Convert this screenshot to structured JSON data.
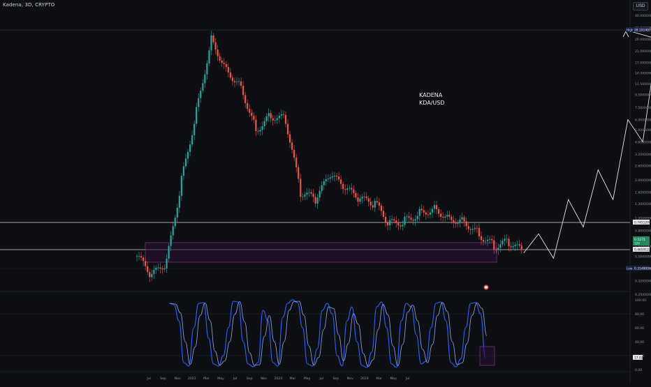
{
  "header": {
    "symbol_title": "Kadena, 3D, CRYPTO",
    "currency": "USD"
  },
  "annotation": {
    "line1": "KADENA",
    "line2": "KDA/USD"
  },
  "price_scale": {
    "labels": [
      "40.0000000",
      "32.0000000",
      "26.0000000",
      "21.0000000",
      "17.0000000",
      "14.0000000",
      "11.5000000",
      "9.5000000",
      "7.5000000",
      "6.0000000",
      "5.0000000",
      "4.0000000",
      "3.2000000",
      "2.6000000",
      "2.0000000",
      "1.6000000",
      "1.3000000",
      "1.0000000",
      "0.8000000",
      "0.6000000",
      "0.5000000",
      "0.4000000",
      "0.3200000",
      "0.2500000"
    ],
    "high_tag": "High",
    "high_value": "28.1914000",
    "low_tag": "Low",
    "low_value": "0.3148000",
    "resistance_value": "0.7451209",
    "current_price": "0.5271",
    "current_sub": "12d",
    "support_value": "0.4659122"
  },
  "oscillator_scale": {
    "labels": [
      "100.00",
      "80.00",
      "60.00",
      "40.00",
      "20.00",
      "0.00"
    ],
    "current_value": "17.02"
  },
  "time_axis": [
    "Jul",
    "Sep",
    "Nov",
    "2022",
    "Mar",
    "May",
    "Jul",
    "Sep",
    "Nov",
    "2023",
    "Mar",
    "May",
    "Jul",
    "Sep",
    "Nov",
    "2024",
    "Mar",
    "May",
    "Jul"
  ],
  "colors": {
    "background": "#0e0f13",
    "up_candle": "#26a69a",
    "down_candle": "#ef5350",
    "zone_fill": "#2a1033",
    "zone_border": "#7b3a83",
    "stoch_k": "#2962ff",
    "stoch_d": "#9fb3ff",
    "projection": "#e6e6e6"
  },
  "chart_data": {
    "type": "line",
    "title": "",
    "series": [
      {
        "name": "",
        "x": [
          "2021-06",
          "2021-07",
          "2021-08",
          "2021-09",
          "2021-10",
          "2021-11",
          "2021-12",
          "2022-01",
          "2022-02",
          "2022-03",
          "2022-04",
          "2022-05",
          "2022-06",
          "2022-07",
          "2022-08",
          "2022-09",
          "2022-10",
          "2022-11",
          "2022-12",
          "2023-01",
          "2023-02",
          "2023-03",
          "2023-04",
          "2023-05",
          "2023-06",
          "2023-07",
          "2023-08"
        ],
        "close": [
          0.5,
          0.35,
          0.45,
          2.0,
          7.0,
          26.0,
          15.0,
          11.0,
          5.0,
          6.5,
          6.0,
          1.6,
          1.4,
          2.2,
          1.7,
          1.4,
          1.3,
          0.9,
          0.95,
          1.1,
          1.2,
          1.0,
          0.95,
          0.75,
          0.6,
          0.65,
          0.53
        ]
      },
      {
        "name": "",
        "x": [
          "2023-08",
          "2023-09",
          "2023-10",
          "2023-11",
          "2023-12",
          "2024-01",
          "2024-02",
          "2024-03",
          "2024-04",
          "2024-05",
          "2024-06",
          "2024-07"
        ],
        "close": [
          0.53,
          0.75,
          0.48,
          1.4,
          0.85,
          2.4,
          1.4,
          6.0,
          4.0,
          26.0,
          28.19,
          28.19
        ]
      }
    ],
    "ylim": [
      0.22,
      40
    ],
    "log_scale": true,
    "high": 28.1914,
    "low": 0.3148,
    "levels": [
      0.7451209,
      0.4659122
    ],
    "oscillator": {
      "name": "",
      "ylim": [
        0,
        100
      ],
      "k": [
        95,
        93,
        70,
        10,
        5,
        60,
        95,
        96,
        45,
        8,
        5,
        20,
        60,
        98,
        97,
        40,
        8,
        4,
        10,
        85,
        70,
        10,
        5,
        75,
        95,
        100,
        96,
        60,
        8,
        5,
        30,
        85,
        95,
        80,
        20,
        5,
        70,
        90,
        40,
        6,
        3,
        25,
        90,
        97,
        60,
        8,
        3,
        70,
        95,
        90,
        50,
        8,
        12,
        60,
        95,
        97,
        70,
        10,
        4,
        15,
        60,
        95,
        96,
        80,
        17
      ],
      "current": 17.02,
      "overbought": 80,
      "oversold": 20
    }
  }
}
